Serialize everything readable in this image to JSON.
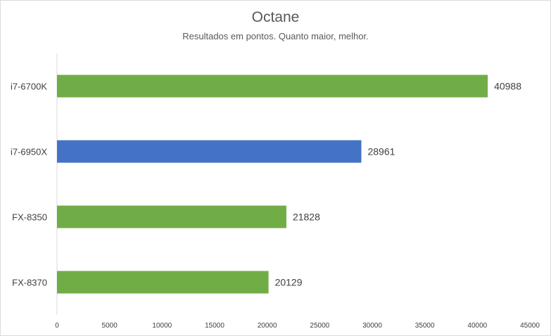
{
  "chart_data": {
    "type": "bar",
    "orientation": "horizontal",
    "title": "Octane",
    "subtitle": "Resultados em pontos. Quanto maior, melhor.",
    "categories": [
      "i7-6700K",
      "i7-6950X",
      "FX-8350",
      "FX-8370"
    ],
    "values": [
      40988,
      28961,
      21828,
      20129
    ],
    "value_labels": [
      "40988",
      "28961",
      "21828",
      "20129"
    ],
    "bar_colors": [
      "#70ad47",
      "#4472c4",
      "#70ad47",
      "#70ad47"
    ],
    "xlim": [
      0,
      45000
    ],
    "x_ticks": [
      0,
      5000,
      10000,
      15000,
      20000,
      25000,
      30000,
      35000,
      40000,
      45000
    ],
    "x_tick_labels": [
      "0",
      "5000",
      "10000",
      "15000",
      "20000",
      "25000",
      "30000",
      "35000",
      "40000",
      "45000"
    ],
    "grid": false,
    "legend": "none"
  }
}
